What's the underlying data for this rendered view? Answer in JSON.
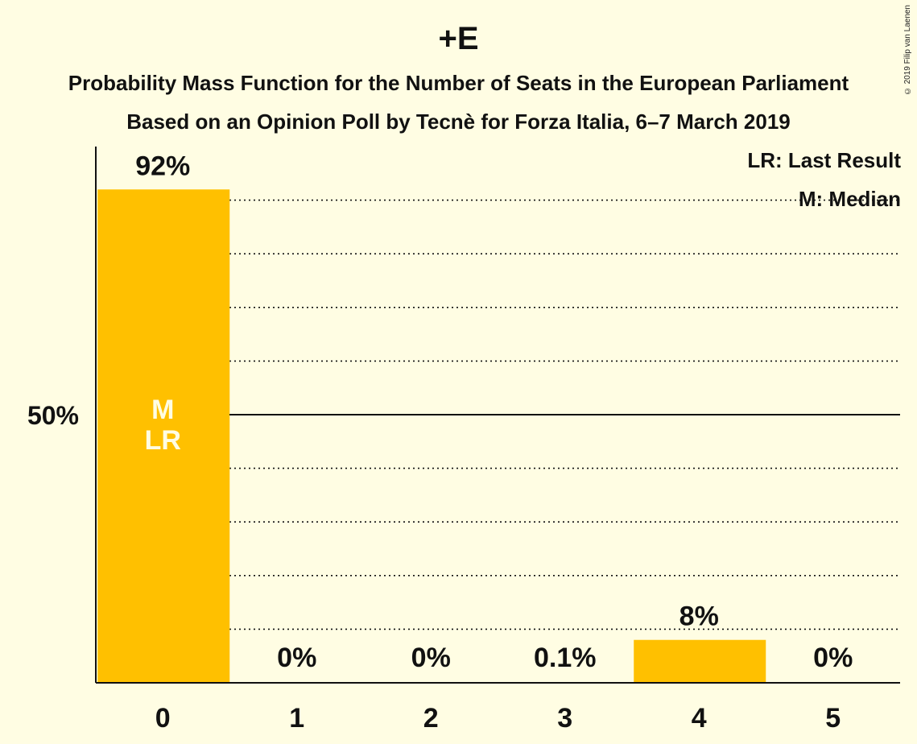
{
  "title": "+E",
  "subtitle_line1": "Probability Mass Function for the Number of Seats in the European Parliament",
  "subtitle_line2": "Based on an Opinion Poll by Tecnè for Forza Italia, 6–7 March 2019",
  "copyright": "© 2019 Filip van Laenen",
  "legend": {
    "last_result": "LR: Last Result",
    "median": "M: Median"
  },
  "colors": {
    "background": "#FFFDE3",
    "bar": "#FFC000",
    "axis": "#111111"
  },
  "chart_data": {
    "type": "bar",
    "categories": [
      "0",
      "1",
      "2",
      "3",
      "4",
      "5"
    ],
    "values": [
      92,
      0,
      0,
      0.1,
      8,
      0
    ],
    "value_labels": [
      "92%",
      "0%",
      "0%",
      "0.1%",
      "8%",
      "0%"
    ],
    "ylim": [
      0,
      100
    ],
    "ytick_labels": [
      {
        "value": 50,
        "label": "50%"
      }
    ],
    "gridlines_dotted_every": 10,
    "gridline_solid_at": 50,
    "bar_annotations": [
      {
        "category": "0",
        "lines": [
          "M",
          "LR"
        ]
      }
    ]
  }
}
